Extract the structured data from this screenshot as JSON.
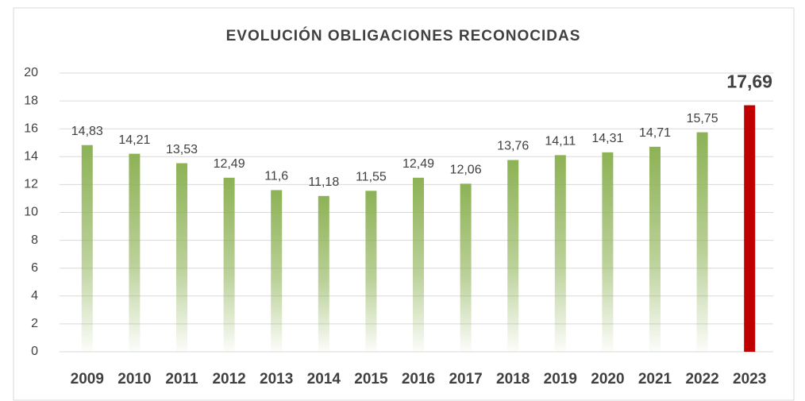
{
  "chart_data": {
    "type": "bar",
    "title": "EVOLUCIÓN OBLIGACIONES RECONOCIDAS",
    "categories": [
      "2009",
      "2010",
      "2011",
      "2012",
      "2013",
      "2014",
      "2015",
      "2016",
      "2017",
      "2018",
      "2019",
      "2020",
      "2021",
      "2022",
      "2023"
    ],
    "values": [
      14.83,
      14.21,
      13.53,
      12.49,
      11.6,
      11.18,
      11.55,
      12.49,
      12.06,
      13.76,
      14.11,
      14.31,
      14.71,
      15.75,
      17.69
    ],
    "value_labels": [
      "14,83",
      "14,21",
      "13,53",
      "12,49",
      "11,6",
      "11,18",
      "11,55",
      "12,49",
      "12,06",
      "13,76",
      "14,11",
      "14,31",
      "14,71",
      "15,75",
      "17,69"
    ],
    "colors": [
      "#8db255",
      "#8db255",
      "#8db255",
      "#8db255",
      "#8db255",
      "#8db255",
      "#8db255",
      "#8db255",
      "#8db255",
      "#8db255",
      "#8db255",
      "#8db255",
      "#8db255",
      "#8db255",
      "#c00000"
    ],
    "ylim": [
      0,
      20
    ],
    "yticks": [
      0,
      2,
      4,
      6,
      8,
      10,
      12,
      14,
      16,
      18,
      20
    ],
    "grid": true
  }
}
